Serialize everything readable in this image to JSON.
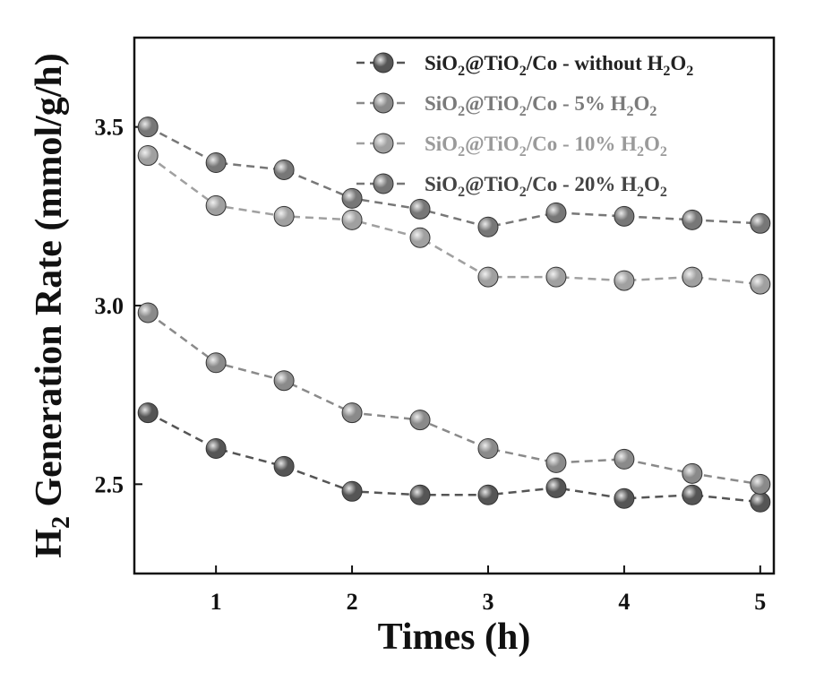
{
  "chart_data": {
    "type": "line",
    "xlabel": "Times (h)",
    "ylabel_main": "H",
    "ylabel_sub": "2",
    "ylabel_rest": " Generation Rate (mmol/g/h)",
    "xlim": [
      0.4,
      5.1
    ],
    "ylim": [
      2.25,
      3.75
    ],
    "xticks": [
      1,
      2,
      3,
      4,
      5
    ],
    "yticks": [
      2.5,
      3.0,
      3.5
    ],
    "xtick_labels": [
      "1",
      "2",
      "3",
      "4",
      "5"
    ],
    "ytick_labels": [
      "2.5",
      "3.0",
      "3.5"
    ],
    "legend_position": "top-right",
    "x": [
      0.5,
      1.0,
      1.5,
      2.0,
      2.5,
      3.0,
      3.5,
      4.0,
      4.5,
      5.0
    ],
    "series": [
      {
        "name_parts": [
          "SiO",
          "2",
          "@TiO",
          "2",
          "/Co - without H",
          "2",
          "O",
          "2"
        ],
        "values": [
          2.7,
          2.6,
          2.55,
          2.48,
          2.47,
          2.47,
          2.49,
          2.46,
          2.47,
          2.45
        ],
        "color": "#555555",
        "label_color": "#222222"
      },
      {
        "name_parts": [
          "SiO",
          "2",
          "@TiO",
          "2",
          "/Co - 5% H",
          "2",
          "O",
          "2"
        ],
        "values": [
          2.98,
          2.84,
          2.79,
          2.7,
          2.68,
          2.6,
          2.56,
          2.57,
          2.53,
          2.5
        ],
        "color": "#8a8a8a",
        "label_color": "#7a7a7a"
      },
      {
        "name_parts": [
          "SiO",
          "2",
          "@TiO",
          "2",
          "/Co - 10% H",
          "2",
          "O",
          "2"
        ],
        "values": [
          3.42,
          3.28,
          3.25,
          3.24,
          3.19,
          3.08,
          3.08,
          3.07,
          3.08,
          3.06
        ],
        "color": "#a0a0a0",
        "label_color": "#9a9a9a"
      },
      {
        "name_parts": [
          "SiO",
          "2",
          "@TiO",
          "2",
          "/Co - 20% H",
          "2",
          "O",
          "2"
        ],
        "values": [
          3.5,
          3.4,
          3.38,
          3.3,
          3.27,
          3.22,
          3.26,
          3.25,
          3.24,
          3.23
        ],
        "color": "#777777",
        "label_color": "#444444"
      }
    ]
  }
}
